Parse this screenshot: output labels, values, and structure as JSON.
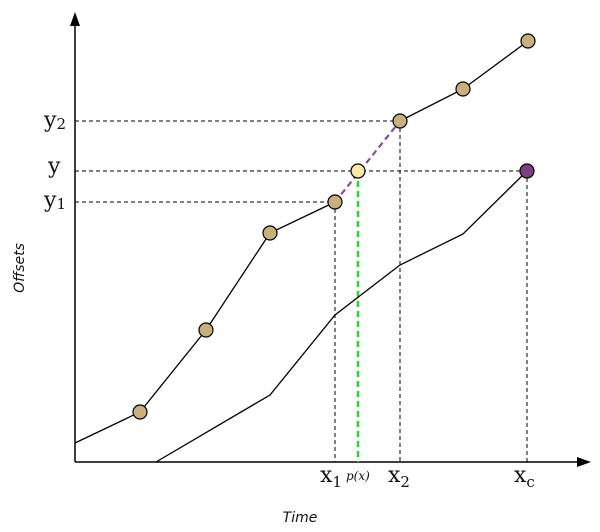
{
  "axes": {
    "x_title": "Time",
    "y_title": "Offsets"
  },
  "labels": {
    "y2": {
      "main": "y",
      "sub": "2"
    },
    "y": {
      "main": "y"
    },
    "y1": {
      "main": "y",
      "sub": "1"
    },
    "x1": {
      "main": "x",
      "sub": "1"
    },
    "px": "p(x)",
    "x2": {
      "main": "x",
      "sub": "2"
    },
    "xc": {
      "main": "x",
      "sub": "c"
    }
  },
  "colors": {
    "point_fill": "#c7b07a",
    "interp_point_fill": "#f7e9a8",
    "target_point_fill": "#7d3f7f",
    "interp_segment": "#8a4a9e",
    "projection_line": "#22dd22",
    "line": "#000000"
  }
}
